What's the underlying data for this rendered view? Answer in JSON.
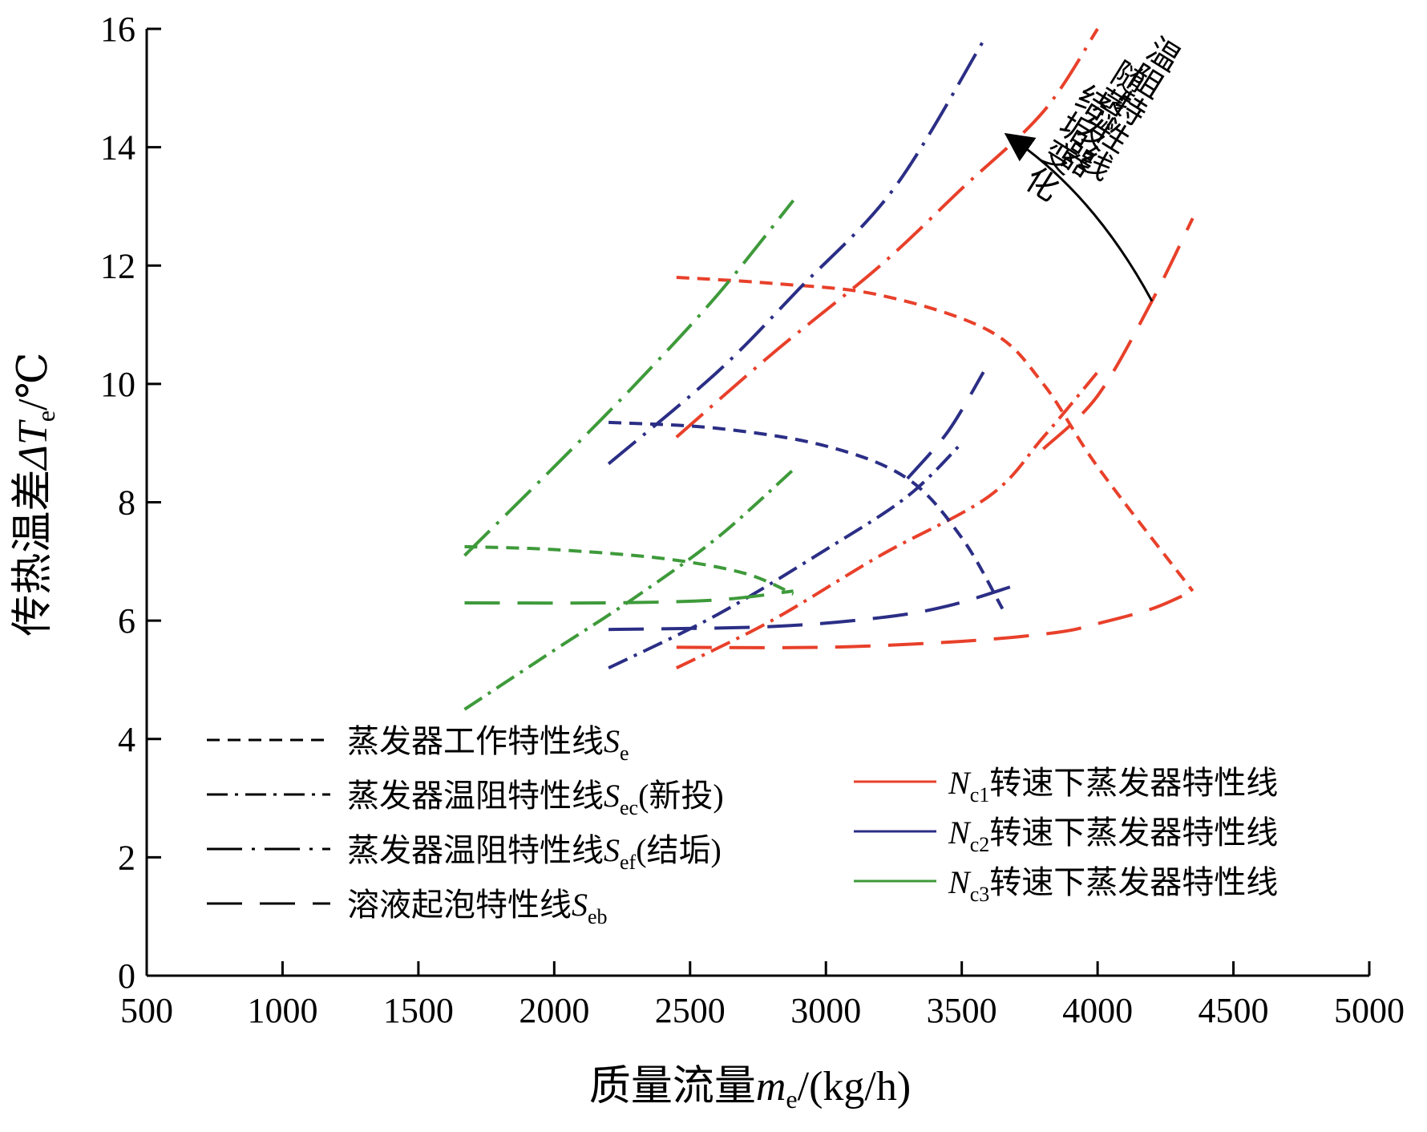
{
  "chart_data": {
    "type": "line",
    "xlabel": "质量流量",
    "xlabel_symbol": "m",
    "xlabel_sub": "e",
    "xlabel_unit": "/(kg/h)",
    "ylabel": "传热温差",
    "ylabel_symbol": "ΔT",
    "ylabel_sub": "e",
    "ylabel_unit": "/℃",
    "xlim": [
      500,
      5000
    ],
    "ylim": [
      0,
      16
    ],
    "xticks": [
      "500",
      "1000",
      "1500",
      "2000",
      "2500",
      "3000",
      "3500",
      "4000",
      "4500",
      "5000"
    ],
    "yticks": [
      "0",
      "2",
      "4",
      "6",
      "8",
      "10",
      "12",
      "14",
      "16"
    ],
    "grid": false,
    "legend_left": [
      {
        "label": "蒸发器工作特性线",
        "symbol": "S",
        "sub": "e",
        "suffix": "",
        "style": "dashed-short"
      },
      {
        "label": "蒸发器温阻特性线",
        "symbol": "S",
        "sub": "ec",
        "suffix": "(新投)",
        "style": "dash-dot"
      },
      {
        "label": "蒸发器温阻特性线",
        "symbol": "S",
        "sub": "ef",
        "suffix": "(结垢)",
        "style": "long-dash-dot"
      },
      {
        "label": "溶液起泡特性线",
        "symbol": "S",
        "sub": "eb",
        "suffix": "",
        "style": "dashed-long"
      }
    ],
    "legend_right": [
      {
        "symbol": "N",
        "sub": "c1",
        "label": "转速下蒸发器特性线",
        "color": "#e8402a"
      },
      {
        "symbol": "N",
        "sub": "c2",
        "label": "转速下蒸发器特性线",
        "color": "#2b2e85"
      },
      {
        "symbol": "N",
        "sub": "c3",
        "label": "转速下蒸发器特性线",
        "color": "#3e9a3a"
      }
    ],
    "annotation": {
      "lines": [
        "温阻特性线",
        "随蒸发器",
        "结垢变化"
      ],
      "arrow_from": [
        4200,
        11.4
      ],
      "arrow_to": [
        3700,
        14.1
      ]
    },
    "series": [
      {
        "group": "Nc1",
        "kind": "Se",
        "color": "#e8402a",
        "style": "dashed-short",
        "x": [
          2450,
          2800,
          3200,
          3600,
          3800,
          4000,
          4350
        ],
        "y": [
          11.8,
          11.7,
          11.5,
          10.9,
          10.0,
          8.6,
          6.5
        ]
      },
      {
        "group": "Nc1",
        "kind": "Sec",
        "color": "#e8402a",
        "style": "dash-dot",
        "x": [
          2450,
          2800,
          3200,
          3600,
          3800,
          4000
        ],
        "y": [
          5.2,
          6.0,
          7.1,
          8.1,
          9.1,
          10.2
        ]
      },
      {
        "group": "Nc1",
        "kind": "Sef",
        "color": "#e8402a",
        "style": "long-dash-dot",
        "x": [
          2450,
          2800,
          3200,
          3500,
          3800,
          4000
        ],
        "y": [
          9.1,
          10.5,
          12.0,
          13.3,
          14.6,
          16.0
        ]
      },
      {
        "group": "Nc1",
        "kind": "Seb",
        "color": "#e8402a",
        "style": "dashed-long",
        "x": [
          2450,
          3000,
          3500,
          3850,
          4000,
          4200,
          4350
        ],
        "y": [
          5.55,
          5.55,
          5.65,
          5.8,
          5.95,
          6.2,
          6.5
        ]
      },
      {
        "group": "Nc1",
        "kind": "Seb-rise",
        "color": "#e8402a",
        "style": "dashed-long",
        "x": [
          3800,
          4000,
          4200,
          4350
        ],
        "y": [
          8.9,
          9.8,
          11.4,
          12.8
        ]
      },
      {
        "group": "Nc2",
        "kind": "Se",
        "color": "#2b2e85",
        "style": "dashed-short",
        "x": [
          2200,
          2600,
          3000,
          3300,
          3500,
          3650
        ],
        "y": [
          9.35,
          9.25,
          8.95,
          8.4,
          7.4,
          6.2
        ]
      },
      {
        "group": "Nc2",
        "kind": "Sec",
        "color": "#2b2e85",
        "style": "dash-dot",
        "x": [
          2200,
          2600,
          3000,
          3300,
          3500
        ],
        "y": [
          5.2,
          6.1,
          7.2,
          8.1,
          9.0
        ]
      },
      {
        "group": "Nc2",
        "kind": "Sef",
        "color": "#2b2e85",
        "style": "long-dash-dot",
        "x": [
          2200,
          2600,
          2900,
          3250,
          3580
        ],
        "y": [
          8.65,
          10.2,
          11.6,
          13.3,
          15.8
        ]
      },
      {
        "group": "Nc2",
        "kind": "Seb",
        "color": "#2b2e85",
        "style": "dashed-long",
        "x": [
          2200,
          2800,
          3200,
          3450,
          3700
        ],
        "y": [
          5.85,
          5.9,
          6.05,
          6.25,
          6.6
        ]
      },
      {
        "group": "Nc2",
        "kind": "Seb-rise",
        "color": "#2b2e85",
        "style": "dashed-long",
        "x": [
          3300,
          3450,
          3580
        ],
        "y": [
          8.4,
          9.2,
          10.2
        ]
      },
      {
        "group": "Nc3",
        "kind": "Se",
        "color": "#3e9a3a",
        "style": "dashed-short",
        "x": [
          1670,
          2000,
          2400,
          2700,
          2880
        ],
        "y": [
          7.25,
          7.2,
          7.05,
          6.8,
          6.45
        ]
      },
      {
        "group": "Nc3",
        "kind": "Sec",
        "color": "#3e9a3a",
        "style": "dash-dot",
        "x": [
          1670,
          2000,
          2300,
          2600,
          2880
        ],
        "y": [
          4.5,
          5.5,
          6.4,
          7.4,
          8.55
        ]
      },
      {
        "group": "Nc3",
        "kind": "Sef",
        "color": "#3e9a3a",
        "style": "long-dash-dot",
        "x": [
          1670,
          2000,
          2300,
          2600,
          2880
        ],
        "y": [
          7.1,
          8.6,
          10.0,
          11.5,
          13.1
        ]
      },
      {
        "group": "Nc3",
        "kind": "Seb",
        "color": "#3e9a3a",
        "style": "dashed-long",
        "x": [
          1670,
          2200,
          2600,
          2880
        ],
        "y": [
          6.3,
          6.3,
          6.35,
          6.5
        ]
      }
    ]
  }
}
